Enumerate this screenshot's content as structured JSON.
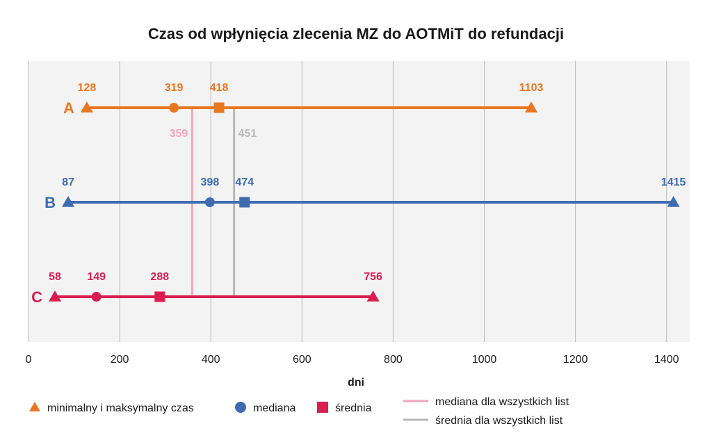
{
  "chart_data": {
    "type": "range-dot",
    "title": "Czas od wpłynięcia zlecenia MZ do AOTMiT do refundacji",
    "xlabel": "dni",
    "xlim": [
      0,
      1450
    ],
    "xticks": [
      0,
      200,
      400,
      600,
      800,
      1000,
      1200,
      1400
    ],
    "grid": true,
    "series": [
      {
        "name": "A",
        "color": "#E87722",
        "min": 128,
        "median": 319,
        "mean": 418,
        "max": 1103
      },
      {
        "name": "B",
        "color": "#3F6CAF",
        "min": 87,
        "median": 398,
        "mean": 474,
        "max": 1415
      },
      {
        "name": "C",
        "color": "#D81E50",
        "min": 58,
        "median": 149,
        "mean": 288,
        "max": 756
      }
    ],
    "reference_lines": [
      {
        "name": "mediana dla wszystkich list",
        "value": 359,
        "color": "#F2A7B8"
      },
      {
        "name": "średnia dla wszystkich list",
        "value": 451,
        "color": "#B8B8B8"
      }
    ],
    "legend": {
      "placement": "bottom",
      "items": [
        {
          "marker": "triangle",
          "label": "minimalny i maksymalny czas",
          "color": "#E87722"
        },
        {
          "marker": "circle",
          "label": "mediana",
          "color": "#3F6CAF"
        },
        {
          "marker": "square",
          "label": "średnia",
          "color": "#D81E50"
        },
        {
          "marker": "line",
          "label": "mediana dla wszystkich list",
          "color": "#F2A7B8"
        },
        {
          "marker": "line",
          "label": "średnia dla wszystkich list",
          "color": "#B8B8B8"
        }
      ]
    }
  }
}
